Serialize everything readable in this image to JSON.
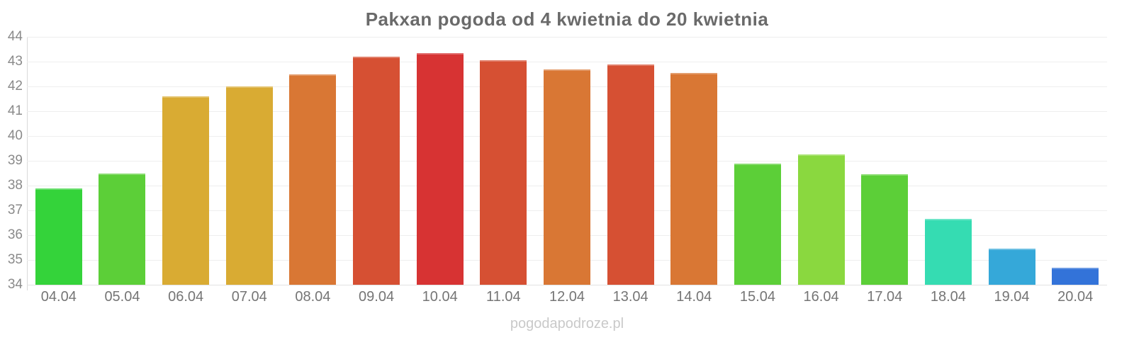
{
  "title": "Pakxan pogoda od 4 kwietnia do 20 kwietnia",
  "watermark": "pogodapodroze.pl",
  "chart_data": {
    "type": "bar",
    "title": "Pakxan pogoda od 4 kwietnia do 20 kwietnia",
    "xlabel": "",
    "ylabel": "",
    "ylim": [
      34,
      44
    ],
    "yticks": [
      34,
      35,
      36,
      37,
      38,
      39,
      40,
      41,
      42,
      43,
      44
    ],
    "grid": true,
    "legend": "none",
    "categories": [
      "04.04",
      "05.04",
      "06.04",
      "07.04",
      "08.04",
      "09.04",
      "10.04",
      "11.04",
      "12.04",
      "13.04",
      "14.04",
      "15.04",
      "16.04",
      "17.04",
      "18.04",
      "19.04",
      "20.04"
    ],
    "values": [
      37.9,
      38.5,
      41.6,
      42.0,
      42.5,
      43.2,
      43.35,
      43.05,
      42.7,
      42.9,
      42.55,
      38.9,
      39.25,
      38.45,
      36.65,
      35.45,
      34.7
    ],
    "bar_colors": [
      "#34d33a",
      "#5ccf38",
      "#d9ab33",
      "#d9ab33",
      "#d97734",
      "#d65033",
      "#d73333",
      "#d65033",
      "#d97734",
      "#d65033",
      "#d97734",
      "#5ccf38",
      "#8ad83f",
      "#5ccf38",
      "#35dcb2",
      "#35a8d9",
      "#3373d9"
    ]
  },
  "colors": {
    "background": "#ffffff",
    "title_text": "#6a6a6a",
    "axis_tick_text": "#8a8a8a",
    "x_tick_text": "#757575",
    "gridline": "#eeeeee",
    "axis_line": "#d9d9d9",
    "watermark_text": "#c9c9c9"
  }
}
